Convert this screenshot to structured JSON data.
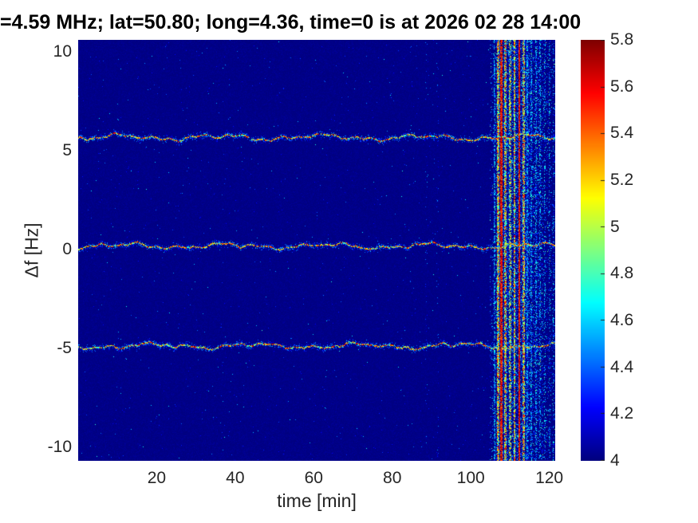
{
  "title": "=4.59 MHz;  lat=50.80; long=4.36, time=0 is at 2026 02 28 14:00",
  "chart_data": {
    "type": "heatmap",
    "title": "=4.59 MHz;  lat=50.80; long=4.36, time=0 is at 2026 02 28 14:00",
    "xlabel": "time [min]",
    "ylabel": "Δf [Hz]",
    "x_range": [
      0,
      121.5
    ],
    "y_range": [
      -10.7,
      10.6
    ],
    "x_ticks": [
      20,
      40,
      60,
      80,
      100,
      120
    ],
    "y_ticks": [
      10,
      5,
      0,
      -5,
      -10
    ],
    "grid": false,
    "colormap": "jet",
    "colormap_stops": [
      [
        0,
        "#000080"
      ],
      [
        0.125,
        "#0000ff"
      ],
      [
        0.375,
        "#00ffff"
      ],
      [
        0.625,
        "#ffff00"
      ],
      [
        0.875,
        "#ff0000"
      ],
      [
        1,
        "#800000"
      ]
    ],
    "colorbar": {
      "min": 4,
      "max": 5.8,
      "ticks": [
        4,
        4.2,
        4.4,
        4.6,
        4.8,
        5,
        5.2,
        5.4,
        5.6,
        5.8
      ],
      "position": "right"
    },
    "background_value": 4.05,
    "noise_speckle_probability": 0.0035,
    "doppler_traces": [
      {
        "name": "upper-trace",
        "center_hz": 5.7,
        "wiggle_hz": 0.16,
        "core_value_range": [
          5.1,
          5.8
        ],
        "fleck_value_range": [
          4.45,
          5.1
        ]
      },
      {
        "name": "center-trace",
        "center_hz": 0.2,
        "wiggle_hz": 0.16,
        "core_value_range": [
          5.1,
          5.8
        ],
        "fleck_value_range": [
          4.45,
          5.1
        ]
      },
      {
        "name": "lower-trace",
        "center_hz": -4.85,
        "wiggle_hz": 0.16,
        "core_value_range": [
          5.1,
          5.8
        ],
        "fleck_value_range": [
          4.45,
          5.1
        ]
      }
    ],
    "faint_column_times": [
      88.5,
      91.5
    ],
    "interference_burst": {
      "t_start": 104.8,
      "t_end": 121.5,
      "dense_zone": [
        106.3,
        114.8
      ],
      "medium_zone": [
        114.8,
        118.3
      ],
      "strong_line_times": [
        107.7,
        112.2
      ],
      "columns": [
        {
          "t": 105.9,
          "hw": 1.0,
          "p": 0.5,
          "kind": "cyan"
        },
        {
          "t": 106.9,
          "hw": 1.5,
          "p": 0.8,
          "kind": "orange"
        },
        {
          "t": 107.7,
          "hw": 1.2,
          "p": 0.95,
          "kind": "red"
        },
        {
          "t": 108.8,
          "hw": 1.5,
          "p": 0.75,
          "kind": "orange"
        },
        {
          "t": 109.9,
          "hw": 1.5,
          "p": 0.55,
          "kind": "yellow"
        },
        {
          "t": 111.0,
          "hw": 1.2,
          "p": 0.8,
          "kind": "orange"
        },
        {
          "t": 112.2,
          "hw": 1.2,
          "p": 0.95,
          "kind": "red"
        },
        {
          "t": 113.3,
          "hw": 1.5,
          "p": 0.7,
          "kind": "orange"
        },
        {
          "t": 114.3,
          "hw": 1.0,
          "p": 0.5,
          "kind": "cyan"
        },
        {
          "t": 115.4,
          "hw": 1.0,
          "p": 0.45,
          "kind": "cyan"
        },
        {
          "t": 116.6,
          "hw": 1.0,
          "p": 0.4,
          "kind": "cyan"
        },
        {
          "t": 117.6,
          "hw": 1.0,
          "p": 0.35,
          "kind": "cyan"
        },
        {
          "t": 118.8,
          "hw": 1.0,
          "p": 0.25,
          "kind": "cyan"
        },
        {
          "t": 120.0,
          "hw": 1.0,
          "p": 0.2,
          "kind": "cyan"
        },
        {
          "t": 121.0,
          "hw": 1.0,
          "p": 0.15,
          "kind": "cyan"
        }
      ]
    },
    "seed": 1337
  },
  "colors": {
    "page_background": "#ffffff",
    "plot_background": "#000086",
    "text": "#262626",
    "title_text": "#000000"
  }
}
